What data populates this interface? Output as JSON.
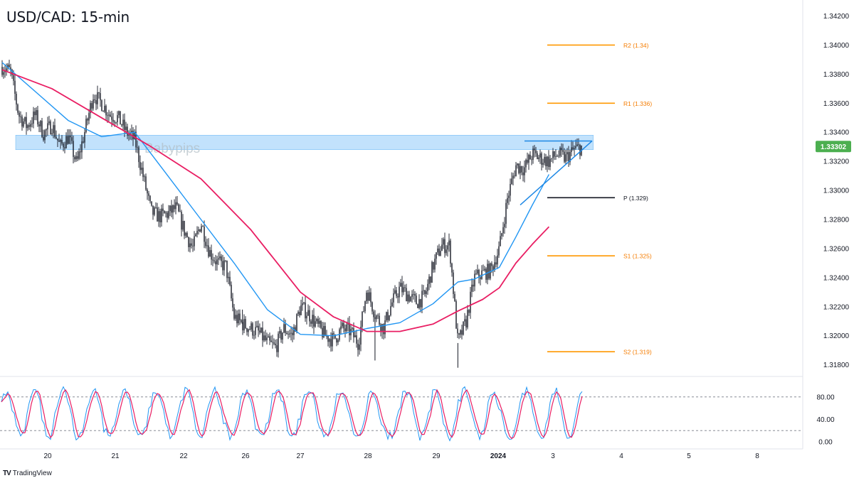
{
  "header": {
    "title": "USD/CAD: 15-min"
  },
  "branding": {
    "icon": "tradingview-logo-icon",
    "text": "TradingView"
  },
  "watermark": "Babypips",
  "colors": {
    "candle": "#131722",
    "ma_fast": "#2196f3",
    "ma_slow": "#e91e63",
    "zone": "#90caf9",
    "pivot_line": "#131722",
    "level_line": "#ff9800",
    "level_text": "#f57c00",
    "price_badge": "#4caf50",
    "stoch_k": "#2196f3",
    "stoch_d": "#e91e63"
  },
  "chart_data": [
    {
      "type": "candlestick",
      "title": "USD/CAD: 15-min",
      "x_ticks": [
        "20",
        "21",
        "22",
        "26",
        "27",
        "28",
        "29",
        "2024",
        "3",
        "4",
        "5",
        "8"
      ],
      "y_ticks": [
        "1.34200",
        "1.34000",
        "1.33800",
        "1.33600",
        "1.33400",
        "1.33200",
        "1.33000",
        "1.32800",
        "1.32600",
        "1.32400",
        "1.32200",
        "1.32000",
        "1.31800"
      ],
      "ylim": [
        1.3172,
        1.3431
      ],
      "current_price": "1.33302",
      "price_path": [
        [
          0,
          1.3385
        ],
        [
          0.5,
          1.3382
        ],
        [
          1,
          1.3352
        ],
        [
          1.5,
          1.3344
        ],
        [
          2,
          1.3352
        ],
        [
          2.5,
          1.3339
        ],
        [
          3,
          1.3345
        ],
        [
          3.5,
          1.333
        ],
        [
          4,
          1.3337
        ],
        [
          4.5,
          1.3318
        ],
        [
          5,
          1.3341
        ],
        [
          5.5,
          1.3366
        ],
        [
          6,
          1.336
        ],
        [
          6.5,
          1.3352
        ],
        [
          7,
          1.335
        ],
        [
          7.5,
          1.334
        ],
        [
          8,
          1.3335
        ],
        [
          8.5,
          1.331
        ],
        [
          9,
          1.3285
        ],
        [
          9.5,
          1.3282
        ],
        [
          10,
          1.3284
        ],
        [
          10.5,
          1.3288
        ],
        [
          11,
          1.3272
        ],
        [
          11.5,
          1.326
        ],
        [
          12,
          1.3278
        ],
        [
          12.5,
          1.3258
        ],
        [
          13,
          1.325
        ],
        [
          13.5,
          1.3248
        ],
        [
          14,
          1.3213
        ],
        [
          14.5,
          1.3208
        ],
        [
          15,
          1.3205
        ],
        [
          15.5,
          1.3202
        ],
        [
          16,
          1.3195
        ],
        [
          16.5,
          1.3192
        ],
        [
          17,
          1.3205
        ],
        [
          17.5,
          1.32
        ],
        [
          18,
          1.322
        ],
        [
          18.5,
          1.3215
        ],
        [
          19,
          1.3207
        ],
        [
          19.5,
          1.32
        ],
        [
          20,
          1.3197
        ],
        [
          20.5,
          1.3205
        ],
        [
          21,
          1.3203
        ],
        [
          21.5,
          1.3195
        ],
        [
          22,
          1.3232
        ],
        [
          22.5,
          1.3215
        ],
        [
          23,
          1.3205
        ],
        [
          23.5,
          1.3222
        ],
        [
          24,
          1.3233
        ],
        [
          24.5,
          1.3228
        ],
        [
          25,
          1.3223
        ],
        [
          25.5,
          1.3227
        ],
        [
          26,
          1.3248
        ],
        [
          26.5,
          1.3262
        ],
        [
          27,
          1.3262
        ],
        [
          27.5,
          1.3195
        ],
        [
          28,
          1.321
        ],
        [
          28.5,
          1.324
        ],
        [
          29,
          1.3243
        ],
        [
          29.5,
          1.3245
        ],
        [
          30,
          1.326
        ],
        [
          30.5,
          1.3295
        ],
        [
          31,
          1.3317
        ],
        [
          31.5,
          1.3315
        ],
        [
          32,
          1.3325
        ],
        [
          32.5,
          1.3322
        ],
        [
          33,
          1.332
        ],
        [
          33.5,
          1.3325
        ],
        [
          34,
          1.3322
        ],
        [
          34.5,
          1.3328
        ],
        [
          35,
          1.333
        ]
      ],
      "special_wicks": [
        [
          14.5,
          1.3218
        ],
        [
          22.5,
          1.3183
        ],
        [
          27.5,
          1.3178
        ]
      ],
      "series": [
        {
          "name": "",
          "color": "#2196f3",
          "points": [
            [
              0,
              1.3388
            ],
            [
              2,
              1.3368
            ],
            [
              4,
              1.3348
            ],
            [
              6,
              1.3337
            ],
            [
              8,
              1.334
            ],
            [
              10,
              1.331
            ],
            [
              12,
              1.328
            ],
            [
              14,
              1.325
            ],
            [
              16,
              1.3218
            ],
            [
              18,
              1.3201
            ],
            [
              20,
              1.32
            ],
            [
              22,
              1.3205
            ],
            [
              24,
              1.3209
            ],
            [
              26,
              1.3222
            ],
            [
              27.5,
              1.3237
            ],
            [
              28.5,
              1.3239
            ],
            [
              30,
              1.3247
            ],
            [
              31,
              1.3268
            ],
            [
              32,
              1.329
            ],
            [
              33,
              1.3311
            ]
          ]
        },
        {
          "name": "",
          "color": "#e91e63",
          "points": [
            [
              0,
              1.3383
            ],
            [
              3,
              1.337
            ],
            [
              6,
              1.335
            ],
            [
              9,
              1.333
            ],
            [
              12,
              1.3308
            ],
            [
              15,
              1.3273
            ],
            [
              18,
              1.323
            ],
            [
              20,
              1.3213
            ],
            [
              22,
              1.3203
            ],
            [
              24,
              1.3203
            ],
            [
              26,
              1.3208
            ],
            [
              27.5,
              1.3217
            ],
            [
              29,
              1.3225
            ],
            [
              30,
              1.3233
            ],
            [
              31,
              1.325
            ],
            [
              32,
              1.3263
            ],
            [
              33,
              1.3275
            ]
          ]
        }
      ],
      "zone": {
        "label": "Babypips",
        "from": 1.3328,
        "to": 1.3338,
        "x_start": 0,
        "x_end": 35.5
      },
      "levels": [
        {
          "label": "R2 (1.34)",
          "value": 1.34,
          "kind": "resistance"
        },
        {
          "label": "R1 (1.336)",
          "value": 1.336,
          "kind": "resistance"
        },
        {
          "label": "P (1.329)",
          "value": 1.3295,
          "kind": "pivot"
        },
        {
          "label": "S1 (1.325)",
          "value": 1.3255,
          "kind": "support"
        },
        {
          "label": "S2 (1.319)",
          "value": 1.3189,
          "kind": "support"
        }
      ],
      "triangle": {
        "top": [
          [
            31.2,
            1.3334
          ],
          [
            35.4,
            1.3334
          ]
        ],
        "bottom": [
          [
            31.2,
            1.329
          ],
          [
            35.4,
            1.3334
          ]
        ]
      }
    },
    {
      "type": "line",
      "title": "",
      "y_ticks": [
        "80.00",
        "40.00",
        "0.00"
      ],
      "ylim": [
        0,
        100
      ],
      "reference_lines": [
        80,
        20
      ],
      "series": [
        {
          "name": "",
          "color": "#2196f3",
          "seed": 3
        },
        {
          "name": "",
          "color": "#e91e63",
          "seed": 3
        }
      ]
    }
  ]
}
